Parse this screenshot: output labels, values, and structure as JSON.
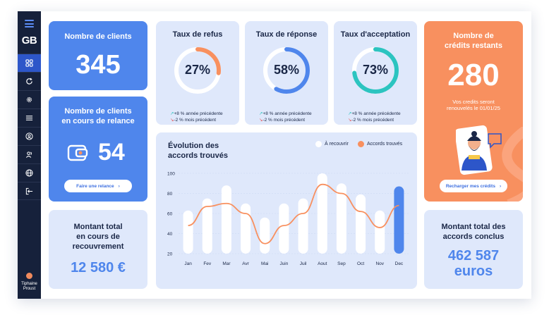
{
  "app": {
    "logo": "GB"
  },
  "sidebar": {
    "items": [
      {
        "icon": "grid-icon"
      },
      {
        "icon": "refresh-icon"
      },
      {
        "icon": "gear-icon"
      },
      {
        "icon": "list-icon"
      },
      {
        "icon": "user-circle-icon"
      },
      {
        "icon": "users-icon"
      },
      {
        "icon": "globe-icon"
      },
      {
        "icon": "logout-icon"
      }
    ],
    "user": {
      "first_name": "Tiphaine",
      "last_name": "Proust"
    }
  },
  "cards": {
    "clients": {
      "title": "Nombre de clients",
      "value": "345"
    },
    "relance": {
      "title_line1": "Nombre de clients",
      "title_line2": "en cours de relance",
      "value": "54",
      "button": "Faire une relance"
    },
    "montant_recouvrement": {
      "line1": "Montant total",
      "line2": "en cours de",
      "line3": "recouvrement",
      "value": "12 580 €"
    },
    "refus": {
      "title": "Taux de refus",
      "value": "27%",
      "percent": 27,
      "color": "#f8905f",
      "note_up": "+8 % année précédente",
      "note_down": "-2 % mois précédent"
    },
    "reponse": {
      "title": "Taux de réponse",
      "value": "58%",
      "percent": 58,
      "color": "#4f86ec",
      "note_up": "+8 % année précédente",
      "note_down": "-2 % mois précédent"
    },
    "acceptation": {
      "title": "Taux d'acceptation",
      "value": "73%",
      "percent": 73,
      "color": "#2cc4c0",
      "note_up": "+8 % année précédente",
      "note_down": "-2 % mois précédent"
    },
    "credits": {
      "title_line1": "Nombre de",
      "title_line2": "crédits restants",
      "value": "280",
      "sub_line1": "Vos credits seront",
      "sub_line2": "renouvelés le 01/01/25",
      "button": "Recharger mes crédits"
    },
    "accords": {
      "line1": "Montant total des",
      "line2": "accords conclus",
      "value_line1": "462 587",
      "value_line2": "euros"
    }
  },
  "chart": {
    "title_line1": "Évolution des",
    "title_line2": "accords trouvés",
    "legend": [
      {
        "label": "À recouvrir",
        "color": "#ffffff"
      },
      {
        "label": "Accords trouvés",
        "color": "#f8905f"
      }
    ],
    "y_ticks": [
      "100",
      "80",
      "60",
      "40",
      "20"
    ]
  },
  "chart_data": {
    "type": "bar",
    "categories": [
      "Jan",
      "Fev",
      "Mar",
      "Avr",
      "Mai",
      "Juin",
      "Juil",
      "Aout",
      "Sep",
      "Oct",
      "Nov",
      "Dec"
    ],
    "ylim": [
      20,
      100
    ],
    "series": [
      {
        "name": "À recouvrir",
        "type": "bar",
        "values": [
          63,
          75,
          88,
          70,
          56,
          70,
          75,
          100,
          90,
          79,
          63,
          87
        ],
        "color": "#ffffff",
        "highlight_index": 11,
        "highlight_color": "#4f86ec"
      },
      {
        "name": "Accords trouvés",
        "type": "line",
        "values": [
          48,
          67,
          70,
          60,
          30,
          48,
          60,
          89,
          80,
          62,
          46,
          68
        ],
        "color": "#f8905f"
      }
    ]
  }
}
